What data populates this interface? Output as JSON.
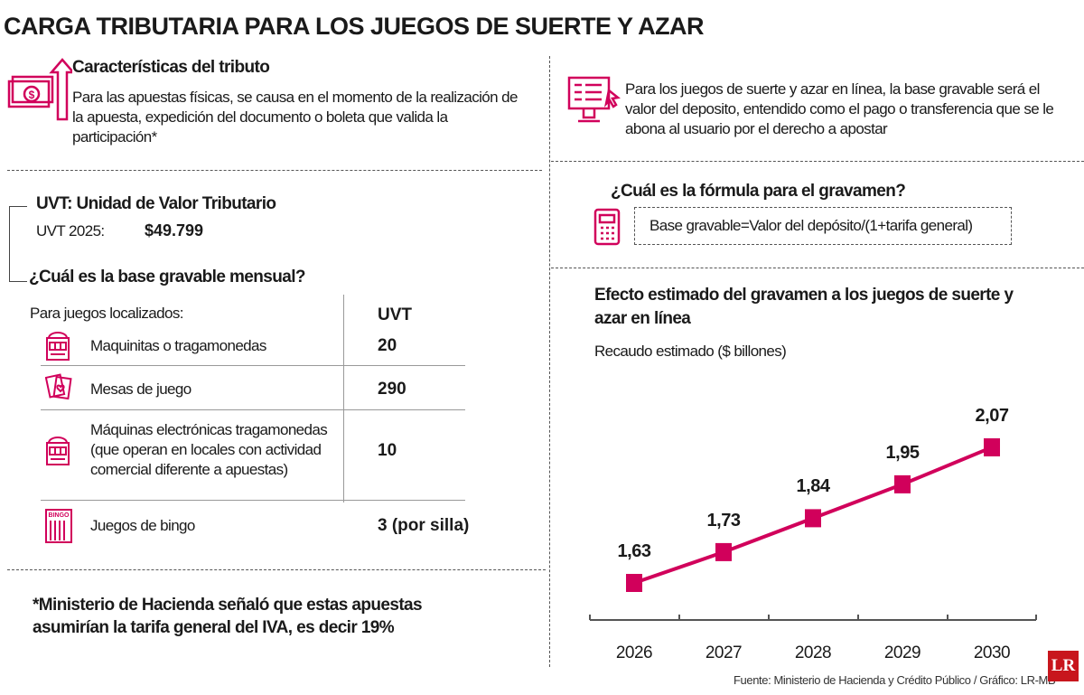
{
  "title": "CARGA TRIBUTARIA PARA LOS JUEGOS DE SUERTE Y AZAR",
  "accent_color": "#d1005b",
  "caracteristicas": {
    "heading": "Características del tributo",
    "text": "Para las apuestas físicas, se causa en el momento de la realización de la apuesta, expedición del documento o boleta que valida la participación*",
    "icon": "money-arrow-up-icon"
  },
  "online": {
    "text": "Para los juegos de suerte y azar en línea, la base gravable será el valor del deposito, entendido como el pago o transferencia que se le abona al usuario por el derecho a apostar",
    "icon": "computer-monitor-icon"
  },
  "formula": {
    "heading": "¿Cuál es la fórmula para el gravamen?",
    "text": "Base gravable=Valor del depósito/(1+tarifa general)",
    "icon": "payment-terminal-icon"
  },
  "uvt": {
    "heading": "UVT: Unidad de Valor Tributario",
    "label": "UVT 2025:",
    "value": "$49.799"
  },
  "base": {
    "heading": "¿Cuál es la base gravable mensual?",
    "subheading": "Para juegos localizados:",
    "col_header": "UVT",
    "rows": [
      {
        "label": "Maquinitas o tragamonedas",
        "value": "20",
        "icon": "slot-machine-icon"
      },
      {
        "label": "Mesas de juego",
        "value": "290",
        "icon": "playing-cards-icon"
      },
      {
        "label": "Máquinas electrónicas tragamonedas (que operan en locales con actividad comercial diferente a apuestas)",
        "value": "10",
        "icon": "slot-machine-icon"
      },
      {
        "label": "Juegos de bingo",
        "value": "3 (por silla)",
        "icon": "bingo-card-icon",
        "icon_text": "BINGO"
      }
    ]
  },
  "note": "*Ministerio de Hacienda señaló que estas apuestas asumirían la tarifa general del IVA, es decir 19%",
  "chart_data": {
    "type": "line",
    "title": "Efecto estimado del gravamen a los juegos de suerte y azar en línea",
    "subtitle": "Recaudo estimado ($ billones)",
    "categories": [
      "2026",
      "2027",
      "2028",
      "2029",
      "2030"
    ],
    "values": [
      1.63,
      1.73,
      1.84,
      1.95,
      2.07
    ],
    "data_labels": [
      "1,63",
      "1,73",
      "1,84",
      "1,95",
      "2,07"
    ],
    "marker": "square",
    "color": "#d1005b",
    "grid": false
  },
  "source": "Fuente: Ministerio de Hacienda y Crédito Público / Gráfico: LR-MB",
  "logo": "LR"
}
